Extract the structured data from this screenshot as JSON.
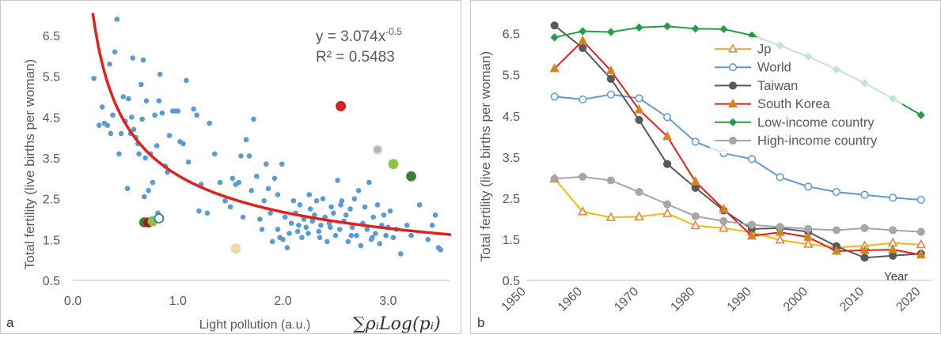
{
  "chart_data": [
    {
      "type": "scatter",
      "panel_label": "a",
      "xlabel": "Light pollution (a.u.)",
      "xlabel_formula": "∑ρᵢLog(pᵢ)",
      "ylabel": "Total fertility (live births per woman)",
      "xlim": [
        0,
        3.6
      ],
      "ylim": [
        0.5,
        7.1
      ],
      "xticks": [
        "0.0",
        "1.0",
        "2.0",
        "3.0"
      ],
      "xtick_values": [
        0,
        1,
        2,
        3
      ],
      "yticks": [
        "0.5",
        "1.5",
        "2.5",
        "3.5",
        "4.5",
        "5.5",
        "6.5"
      ],
      "ytick_values": [
        0.5,
        1.5,
        2.5,
        3.5,
        4.5,
        5.5,
        6.5
      ],
      "grid": false,
      "equation": "y = 3.074x",
      "equation_exp": "-0.5",
      "r_squared": "R² = 0.5483",
      "trend": {
        "a": 3.074,
        "b": -0.5,
        "color": "#e3211c",
        "x_from": 0.19,
        "x_to": 3.6
      },
      "point_color": "#5b9bd5",
      "points": [
        [
          0.2,
          5.45
        ],
        [
          0.25,
          4.3
        ],
        [
          0.28,
          4.75
        ],
        [
          0.3,
          4.35
        ],
        [
          0.33,
          4.3
        ],
        [
          0.35,
          5.8
        ],
        [
          0.36,
          4.1
        ],
        [
          0.38,
          4.55
        ],
        [
          0.4,
          6.1
        ],
        [
          0.42,
          6.9
        ],
        [
          0.44,
          3.6
        ],
        [
          0.46,
          4.1
        ],
        [
          0.48,
          5.0
        ],
        [
          0.5,
          4.4
        ],
        [
          0.52,
          2.75
        ],
        [
          0.53,
          4.95
        ],
        [
          0.55,
          4.1
        ],
        [
          0.56,
          4.5
        ],
        [
          0.57,
          5.95
        ],
        [
          0.58,
          4.2
        ],
        [
          0.6,
          4.0
        ],
        [
          0.62,
          3.85
        ],
        [
          0.63,
          3.6
        ],
        [
          0.65,
          5.3
        ],
        [
          0.66,
          4.45
        ],
        [
          0.67,
          5.9
        ],
        [
          0.68,
          2.55
        ],
        [
          0.69,
          3.5
        ],
        [
          0.7,
          4.9
        ],
        [
          0.72,
          2.7
        ],
        [
          0.74,
          3.6
        ],
        [
          0.76,
          2.9
        ],
        [
          0.78,
          4.55
        ],
        [
          0.8,
          3.8
        ],
        [
          0.81,
          2.15
        ],
        [
          0.82,
          4.9
        ],
        [
          0.83,
          5.55
        ],
        [
          0.85,
          4.6
        ],
        [
          0.88,
          3.3
        ],
        [
          0.9,
          3.15
        ],
        [
          0.92,
          4.05
        ],
        [
          0.95,
          4.65
        ],
        [
          0.98,
          4.65
        ],
        [
          1.0,
          4.65
        ],
        [
          1.02,
          3.9
        ],
        [
          1.05,
          3.85
        ],
        [
          1.08,
          5.4
        ],
        [
          1.1,
          3.4
        ],
        [
          1.15,
          4.7
        ],
        [
          1.18,
          4.55
        ],
        [
          1.2,
          2.2
        ],
        [
          1.22,
          2.85
        ],
        [
          1.28,
          2.15
        ],
        [
          1.3,
          4.35
        ],
        [
          1.35,
          3.6
        ],
        [
          1.4,
          2.9
        ],
        [
          1.45,
          2.45
        ],
        [
          1.5,
          2.3
        ],
        [
          1.52,
          3.0
        ],
        [
          1.55,
          2.85
        ],
        [
          1.58,
          2.9
        ],
        [
          1.6,
          3.55
        ],
        [
          1.62,
          2.05
        ],
        [
          1.65,
          3.95
        ],
        [
          1.68,
          3.55
        ],
        [
          1.7,
          2.7
        ],
        [
          1.72,
          4.45
        ],
        [
          1.75,
          3.05
        ],
        [
          1.78,
          2.0
        ],
        [
          1.8,
          1.75
        ],
        [
          1.82,
          2.45
        ],
        [
          1.84,
          3.35
        ],
        [
          1.86,
          2.75
        ],
        [
          1.88,
          2.15
        ],
        [
          1.9,
          1.45
        ],
        [
          1.92,
          3.0
        ],
        [
          1.95,
          1.75
        ],
        [
          1.97,
          1.55
        ],
        [
          1.99,
          3.35
        ],
        [
          2.0,
          1.5
        ],
        [
          2.02,
          2.05
        ],
        [
          2.04,
          1.3
        ],
        [
          2.06,
          1.65
        ],
        [
          2.08,
          1.9
        ],
        [
          2.1,
          2.45
        ],
        [
          2.12,
          2.15
        ],
        [
          2.14,
          1.7
        ],
        [
          2.16,
          2.35
        ],
        [
          2.18,
          1.55
        ],
        [
          2.2,
          2.0
        ],
        [
          2.22,
          1.8
        ],
        [
          2.24,
          1.65
        ],
        [
          2.26,
          2.25
        ],
        [
          2.28,
          1.95
        ],
        [
          2.3,
          2.1
        ],
        [
          2.32,
          2.45
        ],
        [
          2.34,
          1.7
        ],
        [
          2.36,
          1.85
        ],
        [
          2.38,
          2.5
        ],
        [
          2.4,
          2.05
        ],
        [
          2.42,
          1.45
        ],
        [
          2.44,
          1.9
        ],
        [
          2.46,
          2.3
        ],
        [
          2.48,
          2.15
        ],
        [
          2.5,
          1.6
        ],
        [
          2.52,
          2.95
        ],
        [
          2.54,
          1.75
        ],
        [
          2.56,
          2.45
        ],
        [
          2.58,
          1.95
        ],
        [
          2.6,
          2.1
        ],
        [
          2.62,
          1.45
        ],
        [
          2.64,
          2.25
        ],
        [
          2.66,
          1.8
        ],
        [
          2.68,
          2.5
        ],
        [
          2.7,
          1.6
        ],
        [
          2.72,
          2.7
        ],
        [
          2.74,
          1.35
        ],
        [
          2.76,
          1.9
        ],
        [
          2.78,
          2.3
        ],
        [
          2.8,
          1.75
        ],
        [
          2.82,
          2.9
        ],
        [
          2.84,
          1.5
        ],
        [
          2.86,
          2.05
        ],
        [
          2.88,
          1.65
        ],
        [
          2.9,
          2.35
        ],
        [
          2.92,
          1.4
        ],
        [
          2.94,
          1.85
        ],
        [
          2.96,
          2.1
        ],
        [
          2.98,
          1.6
        ],
        [
          3.0,
          1.8
        ],
        [
          3.02,
          2.2
        ],
        [
          3.05,
          1.55
        ],
        [
          3.08,
          1.75
        ],
        [
          3.12,
          1.15
        ],
        [
          3.18,
          1.85
        ],
        [
          3.22,
          1.6
        ],
        [
          3.3,
          2.35
        ],
        [
          3.38,
          1.5
        ],
        [
          3.42,
          1.85
        ],
        [
          3.45,
          2.1
        ],
        [
          3.48,
          1.3
        ],
        [
          3.5,
          1.25
        ],
        [
          1.95,
          2.6
        ],
        [
          2.25,
          2.6
        ],
        [
          2.55,
          2.35
        ],
        [
          2.35,
          1.55
        ],
        [
          2.65,
          1.6
        ],
        [
          2.85,
          1.55
        ],
        [
          2.15,
          1.85
        ],
        [
          2.45,
          1.8
        ]
      ],
      "highlights": [
        {
          "x": 0.68,
          "y": 1.92,
          "fill": "#3f7f2f",
          "stroke": "#3f7f2f"
        },
        {
          "x": 0.72,
          "y": 1.92,
          "fill": "#9c1f1f",
          "stroke": "#9c1f1f"
        },
        {
          "x": 0.76,
          "y": 1.95,
          "fill": "#8bc34a",
          "stroke": "#8bc34a"
        },
        {
          "x": 0.82,
          "y": 2.02,
          "fill": "#ffffff",
          "stroke": "#2e75b6"
        },
        {
          "x": 1.55,
          "y": 1.28,
          "fill": "#f5df86",
          "stroke": "#d8d8d8"
        },
        {
          "x": 2.55,
          "y": 4.77,
          "fill": "#e3211c",
          "stroke": "#c41a17"
        },
        {
          "x": 2.9,
          "y": 3.7,
          "fill": "#b5b5b5",
          "stroke": "#e0e0e0"
        },
        {
          "x": 3.05,
          "y": 3.35,
          "fill": "#8bc34a",
          "stroke": "#8bc34a"
        },
        {
          "x": 3.22,
          "y": 3.05,
          "fill": "#3f7f2f",
          "stroke": "#3f7f2f"
        }
      ]
    },
    {
      "type": "line",
      "panel_label": "b",
      "ylabel": "Total  fertility (live births per woman)",
      "x_annotation": "Year",
      "xlim": [
        1950,
        2022
      ],
      "ylim": [
        0.5,
        7.05
      ],
      "xticks": [
        "1950",
        "1960",
        "1970",
        "1980",
        "1990",
        "2000",
        "2010",
        "2020"
      ],
      "xtick_values": [
        1950,
        1960,
        1970,
        1980,
        1990,
        2000,
        2010,
        2020
      ],
      "yticks": [
        "0.5",
        "1.5",
        "2.5",
        "3.5",
        "4.5",
        "5.5",
        "6.5"
      ],
      "ytick_values": [
        0.5,
        1.5,
        2.5,
        3.5,
        4.5,
        5.5,
        6.5
      ],
      "grid": false,
      "legend_position": "top-right",
      "x": [
        1955,
        1960,
        1965,
        1970,
        1975,
        1980,
        1985,
        1990,
        1995,
        2000,
        2005,
        2010,
        2015,
        2020
      ],
      "series": [
        {
          "name": "Jp",
          "color": "#f5b80f",
          "marker": "triangle",
          "marker_fill": "#ffffff",
          "marker_stroke": "#ed7d31",
          "values": [
            2.97,
            2.17,
            2.03,
            2.05,
            2.13,
            1.83,
            1.77,
            1.67,
            1.48,
            1.38,
            1.3,
            1.34,
            1.41,
            1.37
          ]
        },
        {
          "name": "World",
          "color": "#5b9bd5",
          "marker": "circle",
          "marker_fill": "#ffffff",
          "marker_stroke": "#5b9bd5",
          "values": [
            4.97,
            4.9,
            5.02,
            4.93,
            4.47,
            3.87,
            3.59,
            3.45,
            3.01,
            2.78,
            2.65,
            2.58,
            2.51,
            2.46
          ]
        },
        {
          "name": "Taiwan",
          "color": "#595959",
          "marker": "circle",
          "marker_fill": "#595959",
          "marker_stroke": "#595959",
          "values": [
            6.7,
            6.15,
            5.4,
            4.4,
            3.33,
            2.75,
            2.2,
            1.75,
            1.77,
            1.68,
            1.33,
            1.05,
            1.1,
            1.15
          ]
        },
        {
          "name": "South Korea",
          "color": "#e3211c",
          "marker": "triangle",
          "marker_fill": "#bf9000",
          "marker_stroke": "#ed7d31",
          "values": [
            5.65,
            6.33,
            5.6,
            4.65,
            4.0,
            2.9,
            2.23,
            1.58,
            1.67,
            1.55,
            1.21,
            1.23,
            1.25,
            1.12
          ]
        },
        {
          "name": "Low-income country",
          "color": "#21a047",
          "marker": "diamond",
          "marker_fill": "#21a047",
          "marker_stroke": "#21a047",
          "values": [
            6.41,
            6.56,
            6.54,
            6.65,
            6.68,
            6.62,
            6.61,
            6.46,
            6.21,
            5.94,
            5.63,
            5.3,
            4.92,
            4.52
          ]
        },
        {
          "name": "High-income country",
          "color": "#a6a6a6",
          "marker": "circle",
          "marker_fill": "#a6a6a6",
          "marker_stroke": "#a6a6a6",
          "values": [
            2.97,
            3.02,
            2.93,
            2.65,
            2.35,
            2.06,
            1.94,
            1.85,
            1.8,
            1.75,
            1.72,
            1.77,
            1.72,
            1.68
          ]
        }
      ]
    }
  ]
}
